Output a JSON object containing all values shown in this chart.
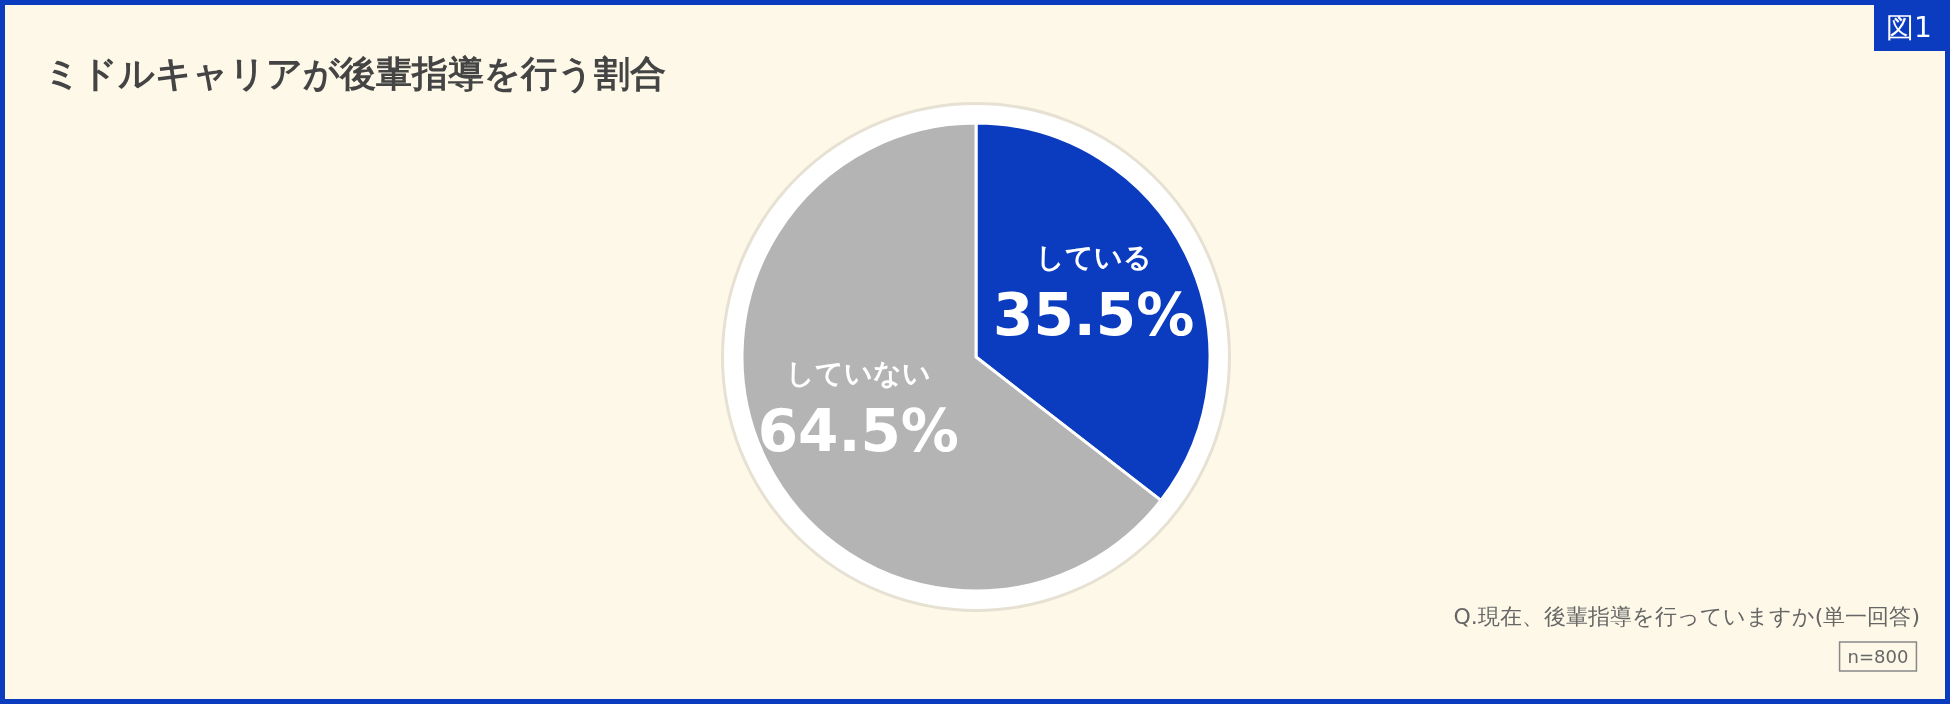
{
  "chart_data": {
    "type": "pie",
    "title": "ミドルキャリアが後輩指導を行う割合",
    "categories": [
      "している",
      "していない"
    ],
    "values": [
      35.5,
      64.5
    ],
    "colors": [
      "#0b3cc0",
      "#b4b4b4"
    ],
    "value_labels": [
      "35.5%",
      "64.5%"
    ],
    "annotations": [
      "図1",
      "Q.現在、後輩指導を行っていますか(単一回答)",
      "n=800"
    ]
  }
}
